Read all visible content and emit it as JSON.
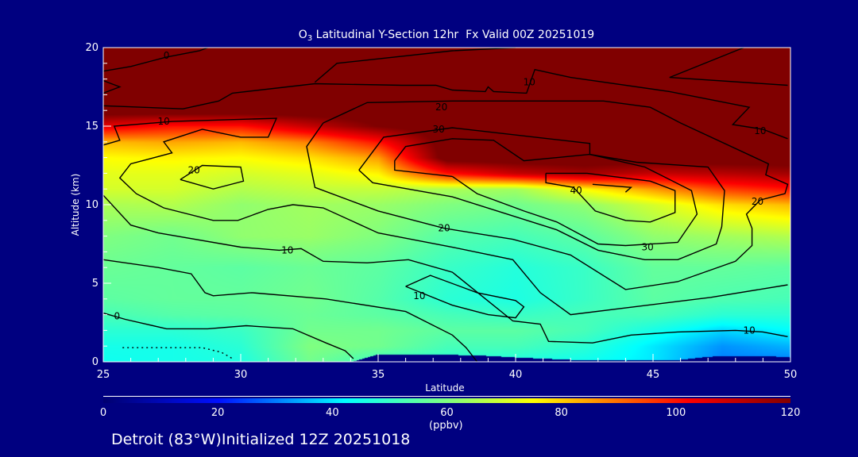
{
  "chart_data": {
    "type": "heatmap",
    "title_prefix": "O",
    "title_sub": "3",
    "title_rest": " Latitudinal Y-Section 12hr  Fx Valid 00Z 20251019",
    "xlabel": "Latitude",
    "ylabel": "Altitude (km)",
    "xlim": [
      25,
      50
    ],
    "ylim": [
      0,
      20
    ],
    "xticks": [
      "25",
      "30",
      "35",
      "40",
      "45",
      "50"
    ],
    "xtick_values": [
      25,
      30,
      35,
      40,
      45,
      50
    ],
    "yticks": [
      "0",
      "5",
      "10",
      "15",
      "20"
    ],
    "ytick_values": [
      0,
      5,
      10,
      15,
      20
    ],
    "colorbar": {
      "ticks": [
        "0",
        "20",
        "40",
        "60",
        "80",
        "100",
        "120"
      ],
      "tick_values": [
        0,
        20,
        40,
        60,
        80,
        100,
        120
      ],
      "units": "(ppbv)",
      "range": [
        0,
        120
      ],
      "stops": [
        [
          0,
          "#000070"
        ],
        [
          20,
          "#0010ff"
        ],
        [
          42,
          "#00ffff"
        ],
        [
          60,
          "#80ff80"
        ],
        [
          75,
          "#ffff00"
        ],
        [
          88,
          "#ff8000"
        ],
        [
          102,
          "#ff0000"
        ],
        [
          120,
          "#800000"
        ]
      ]
    },
    "grid_lat": [
      25,
      27.5,
      30,
      32.5,
      35,
      37.5,
      40,
      42.5,
      45,
      47.5,
      50
    ],
    "grid_alt": [
      0,
      1,
      2,
      3,
      4,
      6,
      8,
      10,
      11,
      12,
      13,
      14,
      15,
      16,
      18,
      20
    ],
    "ozone_ppbv": [
      [
        44,
        45,
        46,
        58,
        50,
        48,
        46,
        44,
        40,
        30,
        30
      ],
      [
        45,
        45,
        48,
        60,
        58,
        52,
        52,
        48,
        40,
        32,
        35
      ],
      [
        48,
        48,
        50,
        58,
        58,
        55,
        55,
        52,
        45,
        38,
        42
      ],
      [
        52,
        54,
        55,
        57,
        55,
        52,
        50,
        52,
        52,
        48,
        48
      ],
      [
        55,
        56,
        56,
        58,
        54,
        48,
        46,
        50,
        55,
        53,
        52
      ],
      [
        57,
        56,
        55,
        57,
        55,
        50,
        47,
        50,
        56,
        56,
        55
      ],
      [
        60,
        58,
        62,
        63,
        60,
        54,
        52,
        55,
        62,
        64,
        66
      ],
      [
        65,
        66,
        62,
        64,
        63,
        60,
        58,
        62,
        70,
        78,
        82
      ],
      [
        70,
        70,
        66,
        68,
        68,
        65,
        64,
        75,
        85,
        95,
        100
      ],
      [
        72,
        72,
        70,
        72,
        76,
        100,
        110,
        115,
        110,
        112,
        115
      ],
      [
        75,
        76,
        75,
        78,
        85,
        125,
        125,
        125,
        125,
        125,
        125
      ],
      [
        82,
        84,
        82,
        88,
        100,
        125,
        125,
        125,
        125,
        125,
        125
      ],
      [
        105,
        100,
        100,
        110,
        120,
        125,
        125,
        125,
        125,
        125,
        125
      ],
      [
        125,
        125,
        125,
        125,
        125,
        125,
        125,
        125,
        125,
        125,
        125
      ],
      [
        125,
        125,
        125,
        125,
        125,
        125,
        125,
        125,
        125,
        125,
        125
      ],
      [
        125,
        125,
        125,
        125,
        125,
        125,
        125,
        125,
        125,
        125,
        125
      ]
    ],
    "terrain_km": [
      [
        34,
        0
      ],
      [
        35,
        0.5
      ],
      [
        37,
        0.5
      ],
      [
        39,
        0.4
      ],
      [
        40,
        0.3
      ],
      [
        42,
        0.15
      ],
      [
        44,
        0.1
      ],
      [
        46,
        0.15
      ],
      [
        47,
        0.35
      ],
      [
        49,
        0.4
      ],
      [
        50,
        0.3
      ]
    ],
    "contours": [
      {
        "value": 0,
        "points": [
          [
            25,
            18.5
          ],
          [
            26.0,
            18.8
          ],
          [
            27.3,
            19.4
          ],
          [
            28.5,
            19.8
          ],
          [
            28.8,
            20
          ]
        ]
      },
      {
        "value": 10,
        "points": [
          [
            25,
            17.9
          ],
          [
            25.6,
            17.5
          ],
          [
            25,
            17.1
          ]
        ]
      },
      {
        "value": 10,
        "points": [
          [
            32.7,
            17.8
          ],
          [
            33.5,
            19.0
          ],
          [
            37.7,
            19.8
          ],
          [
            40,
            20
          ]
        ]
      },
      {
        "value": 10,
        "points": [
          [
            48.3,
            20
          ],
          [
            45.6,
            18.1
          ],
          [
            49.9,
            17.6
          ]
        ]
      },
      {
        "value": 10,
        "points": [
          [
            25,
            16.3
          ],
          [
            27.9,
            16.1
          ],
          [
            29.2,
            16.6
          ],
          [
            29.7,
            17.1
          ],
          [
            32.7,
            17.7
          ],
          [
            35.9,
            17.6
          ],
          [
            37.1,
            17.6
          ],
          [
            37.7,
            17.3
          ],
          [
            38.9,
            17.2
          ],
          [
            39.0,
            17.5
          ],
          [
            39.2,
            17.2
          ],
          [
            40.4,
            17.1
          ],
          [
            40.7,
            18.6
          ],
          [
            42.0,
            18.1
          ],
          [
            45.6,
            17.2
          ],
          [
            48.5,
            16.2
          ],
          [
            47.9,
            15.1
          ],
          [
            49.0,
            14.8
          ],
          [
            49.9,
            14.2
          ]
        ]
      },
      {
        "value": 10,
        "points": [
          [
            25,
            13.8
          ],
          [
            25.6,
            14.1
          ],
          [
            25.4,
            15.0
          ],
          [
            27.5,
            15.3
          ],
          [
            31.3,
            15.5
          ],
          [
            31.0,
            14.3
          ],
          [
            30.0,
            14.3
          ],
          [
            28.6,
            14.8
          ],
          [
            27.2,
            14.0
          ],
          [
            27.5,
            13.3
          ],
          [
            26.0,
            12.6
          ],
          [
            25.6,
            11.7
          ],
          [
            26.2,
            10.7
          ],
          [
            27.2,
            9.8
          ],
          [
            29.0,
            9.0
          ],
          [
            29.9,
            9.0
          ],
          [
            31.0,
            9.7
          ],
          [
            31.9,
            10.0
          ],
          [
            33.0,
            9.8
          ],
          [
            35.0,
            8.2
          ],
          [
            37.7,
            7.3
          ],
          [
            39.9,
            6.5
          ],
          [
            40.9,
            4.4
          ],
          [
            42.0,
            3.0
          ],
          [
            47.1,
            4.1
          ],
          [
            49.9,
            4.9
          ]
        ]
      },
      {
        "value": 20,
        "points": [
          [
            33.0,
            15.2
          ],
          [
            34.6,
            16.5
          ],
          [
            37.7,
            16.6
          ],
          [
            43.2,
            16.6
          ],
          [
            44.9,
            16.2
          ],
          [
            46.0,
            15.2
          ],
          [
            49.2,
            12.6
          ],
          [
            49.1,
            11.9
          ],
          [
            49.9,
            11.3
          ],
          [
            49.8,
            10.7
          ],
          [
            48.9,
            10.3
          ],
          [
            48.4,
            9.4
          ],
          [
            48.6,
            8.5
          ],
          [
            48.6,
            7.4
          ],
          [
            48.0,
            6.4
          ],
          [
            45.9,
            5.1
          ],
          [
            44.0,
            4.6
          ],
          [
            42.0,
            6.8
          ],
          [
            39.9,
            7.8
          ],
          [
            37.4,
            8.5
          ],
          [
            35.0,
            9.6
          ],
          [
            32.7,
            11.1
          ],
          [
            32.4,
            13.7
          ],
          [
            33.0,
            15.2
          ]
        ]
      },
      {
        "value": 30,
        "points": [
          [
            34.3,
            12.2
          ],
          [
            35.2,
            14.3
          ],
          [
            37.7,
            14.9
          ],
          [
            42.7,
            13.9
          ],
          [
            42.7,
            13.2
          ],
          [
            44.4,
            12.7
          ],
          [
            47.0,
            12.4
          ],
          [
            47.6,
            10.9
          ],
          [
            47.5,
            8.6
          ],
          [
            47.3,
            7.5
          ],
          [
            45.9,
            6.5
          ],
          [
            44.7,
            6.5
          ],
          [
            43.0,
            7.1
          ],
          [
            41.5,
            8.4
          ],
          [
            39.7,
            9.4
          ],
          [
            37.7,
            10.5
          ],
          [
            34.8,
            11.4
          ],
          [
            34.3,
            12.2
          ]
        ]
      },
      {
        "value": 30,
        "points": [
          [
            37.7,
            11.8
          ],
          [
            35.6,
            12.2
          ],
          [
            35.6,
            12.8
          ],
          [
            36.0,
            13.7
          ],
          [
            37.7,
            14.2
          ],
          [
            39.2,
            14.1
          ],
          [
            40.3,
            12.8
          ],
          [
            42.7,
            13.2
          ],
          [
            44.7,
            12.4
          ],
          [
            46.4,
            10.9
          ],
          [
            46.6,
            9.4
          ],
          [
            45.9,
            7.6
          ],
          [
            44.0,
            7.4
          ],
          [
            43.0,
            7.5
          ],
          [
            41.5,
            8.9
          ],
          [
            40.3,
            9.6
          ],
          [
            38.6,
            10.7
          ],
          [
            37.7,
            11.8
          ]
        ]
      },
      {
        "value": 40,
        "points": [
          [
            41.1,
            12.0
          ],
          [
            41.1,
            11.4
          ],
          [
            42.1,
            11.1
          ],
          [
            42.9,
            9.6
          ],
          [
            44.0,
            9.0
          ],
          [
            44.9,
            8.9
          ],
          [
            45.8,
            9.5
          ],
          [
            45.8,
            10.9
          ],
          [
            44.9,
            11.5
          ],
          [
            42.6,
            12.0
          ],
          [
            41.1,
            12.0
          ]
        ]
      },
      {
        "value": 40,
        "points": [
          [
            42.8,
            11.3
          ],
          [
            44.2,
            11.1
          ],
          [
            44.0,
            10.8
          ]
        ]
      },
      {
        "value": 20,
        "points": [
          [
            27.8,
            11.6
          ],
          [
            28.6,
            12.5
          ],
          [
            30.0,
            12.4
          ],
          [
            30.1,
            11.5
          ],
          [
            29.0,
            11.0
          ],
          [
            27.8,
            11.6
          ]
        ]
      },
      {
        "value": 10,
        "points": [
          [
            25,
            10.6
          ],
          [
            26.0,
            8.7
          ],
          [
            27.0,
            8.2
          ],
          [
            30.0,
            7.3
          ],
          [
            31.4,
            7.1
          ],
          [
            32.2,
            7.2
          ],
          [
            33.0,
            6.4
          ],
          [
            34.6,
            6.3
          ],
          [
            36.1,
            6.5
          ],
          [
            37.7,
            5.7
          ],
          [
            39.9,
            2.6
          ],
          [
            40.9,
            2.4
          ],
          [
            41.2,
            1.3
          ],
          [
            42.8,
            1.2
          ],
          [
            44.2,
            1.7
          ],
          [
            45.9,
            1.9
          ],
          [
            48.0,
            2.0
          ],
          [
            49.0,
            1.9
          ],
          [
            49.9,
            1.6
          ]
        ]
      },
      {
        "value": 0,
        "points": [
          [
            25,
            6.5
          ],
          [
            27.0,
            6.0
          ],
          [
            28.2,
            5.6
          ],
          [
            28.7,
            4.4
          ],
          [
            29.0,
            4.2
          ],
          [
            30.4,
            4.4
          ],
          [
            33.1,
            4.0
          ],
          [
            36.0,
            3.2
          ],
          [
            37.7,
            1.7
          ],
          [
            38.2,
            0.9
          ],
          [
            38.6,
            0
          ]
        ]
      },
      {
        "value": -10,
        "points": [
          [
            36.0,
            4.8
          ],
          [
            36.9,
            5.5
          ],
          [
            38.6,
            4.4
          ],
          [
            40.0,
            3.9
          ],
          [
            40.3,
            3.5
          ],
          [
            40.0,
            2.8
          ],
          [
            39.0,
            3.0
          ],
          [
            37.7,
            3.6
          ],
          [
            36.0,
            4.8
          ]
        ]
      },
      {
        "value": 0,
        "points": [
          [
            25,
            3.1
          ],
          [
            25.8,
            2.7
          ],
          [
            27.3,
            2.1
          ],
          [
            28.8,
            2.1
          ],
          [
            30.2,
            2.3
          ],
          [
            31.9,
            2.1
          ],
          [
            33.1,
            1.2
          ],
          [
            33.8,
            0.7
          ],
          [
            34.1,
            0.2
          ]
        ]
      },
      {
        "value": -10,
        "dashed": true,
        "points": [
          [
            25.7,
            0.9
          ],
          [
            28.6,
            0.9
          ],
          [
            29.3,
            0.6
          ],
          [
            29.7,
            0.2
          ]
        ]
      }
    ],
    "contour_labels": [
      {
        "text": "0",
        "lat": 27.3,
        "alt": 19.5
      },
      {
        "text": "10",
        "lat": 27.2,
        "alt": 15.3
      },
      {
        "text": "10",
        "lat": 40.5,
        "alt": 17.8
      },
      {
        "text": "20",
        "lat": 37.3,
        "alt": 16.2
      },
      {
        "text": "30",
        "lat": 37.2,
        "alt": 14.8
      },
      {
        "text": "10",
        "lat": 48.9,
        "alt": 14.7
      },
      {
        "text": "20",
        "lat": 28.3,
        "alt": 12.2
      },
      {
        "text": "40",
        "lat": 42.2,
        "alt": 10.9
      },
      {
        "text": "20",
        "lat": 48.8,
        "alt": 10.2
      },
      {
        "text": "20",
        "lat": 37.4,
        "alt": 8.5
      },
      {
        "text": "10",
        "lat": 31.7,
        "alt": 7.1
      },
      {
        "text": "30",
        "lat": 44.8,
        "alt": 7.3
      },
      {
        "text": "10",
        "lat": 36.5,
        "alt": 4.2
      },
      {
        "text": "0",
        "lat": 25.5,
        "alt": 2.9
      },
      {
        "text": "10",
        "lat": 48.5,
        "alt": 2.0
      }
    ]
  },
  "footer": "Detroit (83°W)Initialized 12Z 20251018"
}
